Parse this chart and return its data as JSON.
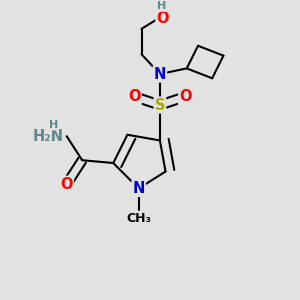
{
  "bg_color": "#e2e2e2",
  "atom_colors": {
    "C": "#000000",
    "N": "#0000cc",
    "O": "#ff0000",
    "S": "#aaaa00",
    "H": "#5a8a8a"
  },
  "bond_color": "#000000",
  "bond_width": 1.5,
  "dbl_sep": 0.09,
  "font_size": 10.5,
  "font_size_sm": 9.0
}
